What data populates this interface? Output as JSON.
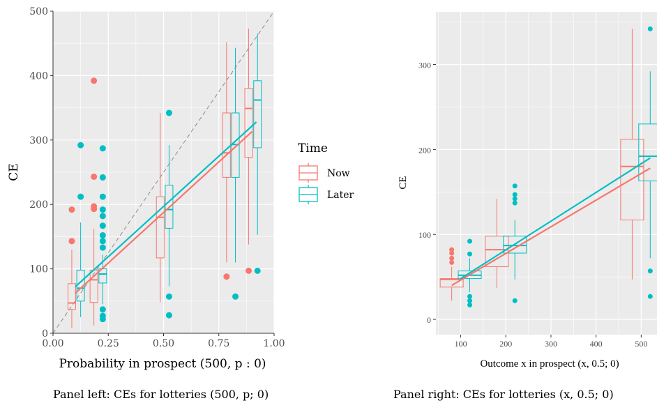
{
  "colors": {
    "now": "#F8766D",
    "later": "#00BFC4",
    "panel_bg": "#EBEBEB",
    "grid": "#FFFFFF"
  },
  "captions": {
    "left": "Panel left: CEs for lotteries (500, p; 0)",
    "right": "Panel right: CEs for lotteries (x, 0.5; 0)"
  },
  "legend": {
    "title": "Time",
    "items": [
      "Now",
      "Later"
    ]
  },
  "chart_data": [
    {
      "type": "box",
      "xlabel": "Probability in prospect (500, p : 0)",
      "ylabel": "CE",
      "xlim": [
        0,
        1
      ],
      "ylim": [
        0,
        500
      ],
      "x_ticks": [
        "0.00",
        "0.25",
        "0.50",
        "0.75",
        "1.00"
      ],
      "x_tick_values": [
        0,
        0.25,
        0.5,
        0.75,
        1.0
      ],
      "y_ticks": [
        "0",
        "100",
        "200",
        "300",
        "400",
        "500"
      ],
      "y_tick_values": [
        0,
        100,
        200,
        300,
        400,
        500
      ],
      "identity_line": true,
      "grid": true,
      "series": [
        {
          "name": "Now",
          "boxes": [
            {
              "x": 0.085,
              "lo": 8,
              "q1": 37,
              "med": 47,
              "q3": 77,
              "hi": 130,
              "outliers": [
                143,
                192
              ]
            },
            {
              "x": 0.185,
              "lo": 12,
              "q1": 48,
              "med": 83,
              "q3": 98,
              "hi": 162,
              "outliers": [
                193,
                197,
                243,
                392
              ]
            },
            {
              "x": 0.485,
              "lo": 48,
              "q1": 117,
              "med": 180,
              "q3": 212,
              "hi": 342,
              "outliers": []
            },
            {
              "x": 0.785,
              "lo": 110,
              "q1": 242,
              "med": 280,
              "q3": 342,
              "hi": 452,
              "outliers": [
                88
              ]
            },
            {
              "x": 0.885,
              "lo": 138,
              "q1": 273,
              "med": 349,
              "q3": 380,
              "hi": 473,
              "outliers": [
                97
              ]
            }
          ],
          "fit_line": {
            "x": [
              0.1,
              0.9
            ],
            "y": [
              62,
              313
            ]
          }
        },
        {
          "name": "Later",
          "boxes": [
            {
              "x": 0.125,
              "lo": 25,
              "q1": 50,
              "med": 70,
              "q3": 98,
              "hi": 172,
              "outliers": [
                212,
                292
              ]
            },
            {
              "x": 0.225,
              "lo": 45,
              "q1": 78,
              "med": 92,
              "q3": 100,
              "hi": 122,
              "outliers": [
                22,
                27,
                37,
                133,
                143,
                152,
                167,
                182,
                192,
                212,
                242,
                287
              ]
            },
            {
              "x": 0.525,
              "lo": 73,
              "q1": 163,
              "med": 192,
              "q3": 230,
              "hi": 292,
              "outliers": [
                28,
                57,
                342
              ]
            },
            {
              "x": 0.825,
              "lo": 110,
              "q1": 242,
              "med": 293,
              "q3": 342,
              "hi": 443,
              "outliers": [
                57
              ]
            },
            {
              "x": 0.925,
              "lo": 153,
              "q1": 288,
              "med": 362,
              "q3": 392,
              "hi": 465,
              "outliers": [
                97
              ]
            }
          ],
          "fit_line": {
            "x": [
              0.1,
              0.92
            ],
            "y": [
              72,
              328
            ]
          }
        }
      ]
    },
    {
      "type": "box",
      "xlabel": "Outcome x in prospect (x, 0.5; 0)",
      "ylabel": "CE",
      "x_ticks": [
        "100",
        "200",
        "300",
        "400",
        "500"
      ],
      "x_tick_values": [
        100,
        200,
        300,
        400,
        500
      ],
      "y_ticks": [
        "0",
        "100",
        "200",
        "300"
      ],
      "y_tick_values": [
        0,
        100,
        200,
        300
      ],
      "xlim": [
        45,
        535
      ],
      "ylim": [
        -18,
        362
      ],
      "grid": true,
      "series": [
        {
          "name": "Now",
          "boxes": [
            {
              "x": 80,
              "lo": 22,
              "q1": 38,
              "med": 47,
              "q3": 48,
              "hi": 62,
              "outliers": [
                67,
                72,
                78,
                82
              ]
            },
            {
              "x": 180,
              "lo": 37,
              "q1": 62,
              "med": 82,
              "q3": 98,
              "hi": 142,
              "outliers": []
            },
            {
              "x": 480,
              "lo": 47,
              "q1": 117,
              "med": 180,
              "q3": 212,
              "hi": 342,
              "outliers": []
            }
          ],
          "fit_line": {
            "x": [
              80,
              520
            ],
            "y": [
              40,
              178
            ]
          }
        },
        {
          "name": "Later",
          "boxes": [
            {
              "x": 120,
              "lo": 32,
              "q1": 48,
              "med": 52,
              "q3": 57,
              "hi": 72,
              "outliers": [
                17,
                22,
                27,
                77,
                92
              ]
            },
            {
              "x": 220,
              "lo": 47,
              "q1": 78,
              "med": 87,
              "q3": 98,
              "hi": 117,
              "outliers": [
                22,
                137,
                142,
                147,
                157
              ]
            },
            {
              "x": 520,
              "lo": 72,
              "q1": 163,
              "med": 192,
              "q3": 230,
              "hi": 292,
              "outliers": [
                27,
                57,
                342
              ]
            }
          ],
          "fit_line": {
            "x": [
              100,
              520
            ],
            "y": [
              48,
              190
            ]
          }
        }
      ]
    }
  ]
}
